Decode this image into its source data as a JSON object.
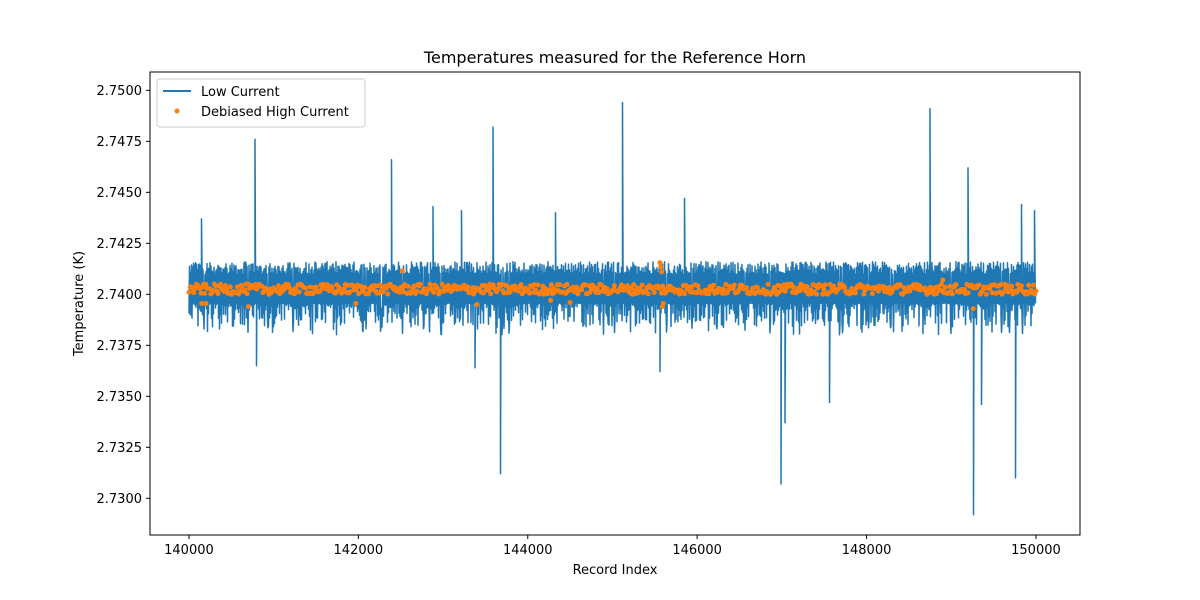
{
  "chart_data": {
    "type": "line",
    "title": "Temperatures measured for the Reference Horn",
    "xlabel": "Record Index",
    "ylabel": "Temperature (K)",
    "xlim": [
      139540,
      150520
    ],
    "ylim": [
      2.7282,
      2.7509
    ],
    "xticks": [
      140000,
      142000,
      144000,
      146000,
      148000,
      150000
    ],
    "xtick_labels": [
      "140000",
      "142000",
      "144000",
      "146000",
      "148000",
      "150000"
    ],
    "yticks": [
      2.73,
      2.7325,
      2.735,
      2.7375,
      2.74,
      2.7425,
      2.745,
      2.7475,
      2.75
    ],
    "ytick_labels": [
      "2.7300",
      "2.7325",
      "2.7350",
      "2.7375",
      "2.7400",
      "2.7425",
      "2.7450",
      "2.7475",
      "2.7500"
    ],
    "grid": false,
    "legend_position": "top-left",
    "series": [
      {
        "name": "Low Current",
        "kind": "line",
        "color": "#1f77b4",
        "x_start": 140000,
        "x_end": 150000,
        "baseline": 2.7402,
        "noise_band": [
          2.7384,
          2.7416
        ],
        "spikes": [
          {
            "x": 140150,
            "y": 2.7437
          },
          {
            "x": 140780,
            "y": 2.7476
          },
          {
            "x": 140800,
            "y": 2.7365
          },
          {
            "x": 142390,
            "y": 2.7466
          },
          {
            "x": 142880,
            "y": 2.7443
          },
          {
            "x": 143220,
            "y": 2.7441
          },
          {
            "x": 143380,
            "y": 2.7364
          },
          {
            "x": 143590,
            "y": 2.7482
          },
          {
            "x": 143680,
            "y": 2.7312
          },
          {
            "x": 144330,
            "y": 2.744
          },
          {
            "x": 145120,
            "y": 2.7494
          },
          {
            "x": 145560,
            "y": 2.7362
          },
          {
            "x": 145850,
            "y": 2.7447
          },
          {
            "x": 146990,
            "y": 2.7307
          },
          {
            "x": 147040,
            "y": 2.7337
          },
          {
            "x": 147560,
            "y": 2.7347
          },
          {
            "x": 148750,
            "y": 2.7491
          },
          {
            "x": 149200,
            "y": 2.7462
          },
          {
            "x": 149260,
            "y": 2.7292
          },
          {
            "x": 149360,
            "y": 2.7346
          },
          {
            "x": 149760,
            "y": 2.731
          },
          {
            "x": 149830,
            "y": 2.7444
          },
          {
            "x": 149980,
            "y": 2.7441
          }
        ]
      },
      {
        "name": "Debiased High Current",
        "kind": "scatter",
        "color": "#ff7f0e",
        "x_start": 140000,
        "x_end": 150000,
        "baseline": 2.74025,
        "spread": [
          2.74,
          2.7405
        ],
        "outliers": [
          {
            "x": 140150,
            "y": 2.73955
          },
          {
            "x": 140200,
            "y": 2.73955
          },
          {
            "x": 140700,
            "y": 2.7394
          },
          {
            "x": 141970,
            "y": 2.73955
          },
          {
            "x": 142520,
            "y": 2.74115
          },
          {
            "x": 143400,
            "y": 2.7395
          },
          {
            "x": 144270,
            "y": 2.7397
          },
          {
            "x": 144500,
            "y": 2.7396
          },
          {
            "x": 145560,
            "y": 2.74155
          },
          {
            "x": 145570,
            "y": 2.74135
          },
          {
            "x": 145580,
            "y": 2.7411
          },
          {
            "x": 145590,
            "y": 2.7394
          },
          {
            "x": 145600,
            "y": 2.73955
          },
          {
            "x": 148900,
            "y": 2.7407
          },
          {
            "x": 149260,
            "y": 2.7393
          }
        ]
      }
    ]
  }
}
